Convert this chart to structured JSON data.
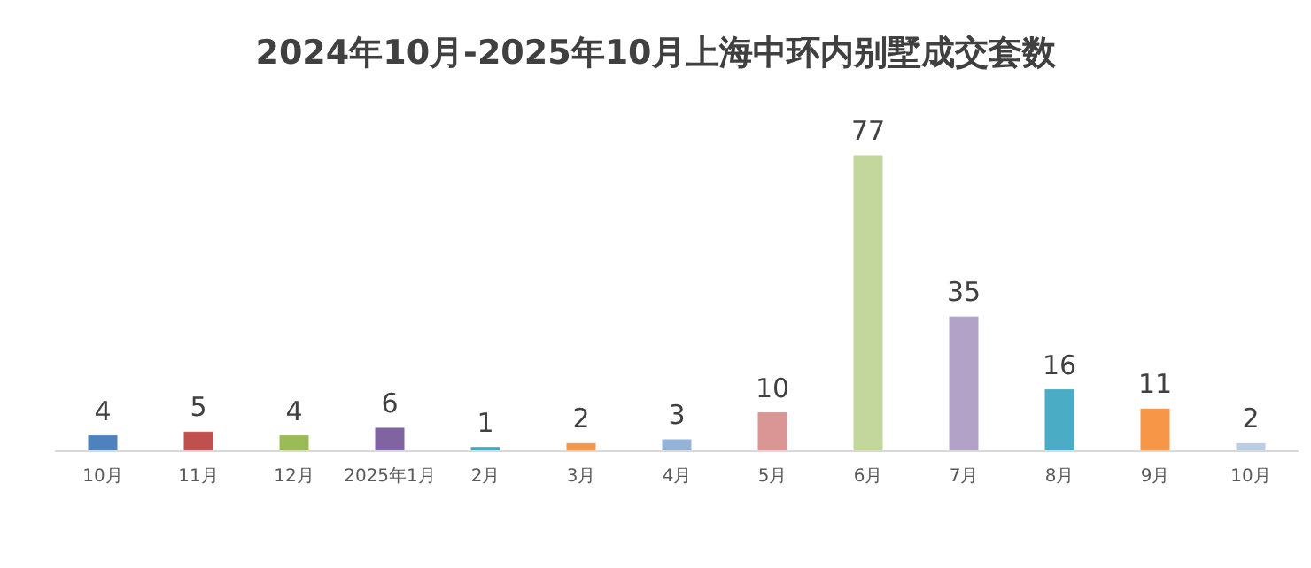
{
  "chart_data": {
    "type": "bar",
    "title": "2024年10月-2025年10月上海中环内别墅成交套数",
    "categories": [
      "10月",
      "11月",
      "12月",
      "2025年1月",
      "2月",
      "3月",
      "4月",
      "5月",
      "6月",
      "7月",
      "8月",
      "9月",
      "10月"
    ],
    "values": [
      4,
      5,
      4,
      6,
      1,
      2,
      3,
      10,
      77,
      35,
      16,
      11,
      2
    ],
    "colors": [
      "#4f81bd",
      "#c0504d",
      "#9bbb59",
      "#8064a2",
      "#4bacc6",
      "#f79646",
      "#95b3d7",
      "#d99694",
      "#c3d69b",
      "#b3a2c7",
      "#4bacc6",
      "#f79646",
      "#b9cde5"
    ],
    "data_labels": true
  }
}
